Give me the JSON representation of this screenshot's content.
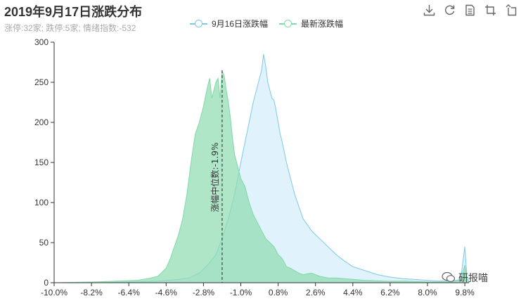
{
  "title": "2019年9月17日涨跌分布",
  "subtitle": "涨停:32家; 跌停:5家; 情绪指数:-532",
  "toolbox": [
    {
      "name": "download-icon"
    },
    {
      "name": "refresh-icon"
    },
    {
      "name": "data-view-icon"
    },
    {
      "name": "zoom-icon"
    },
    {
      "name": "zoom-reset-icon"
    }
  ],
  "watermark": "研报喵",
  "colors": {
    "series_prev_line": "#7ec8ea",
    "series_prev_fill": "#d6edf9",
    "series_latest_line": "#7fd9a8",
    "series_latest_fill": "#8fdcb2"
  },
  "chart_data": {
    "type": "area",
    "title": "2019年9月17日涨跌分布",
    "subtitle": "涨停:32家; 跌停:5家; 情绪指数:-532",
    "xlim": [
      -10,
      10
    ],
    "ylim": [
      0,
      300
    ],
    "xticks": [
      "-10.0%",
      "-8.2%",
      "-6.4%",
      "-4.6%",
      "-2.8%",
      "-1.0%",
      "0.8%",
      "2.6%",
      "4.4%",
      "6.2%",
      "8.0%",
      "9.8%"
    ],
    "yticks": [
      "0",
      "50",
      "100",
      "150",
      "200",
      "250",
      "300"
    ],
    "legend_position": "top-center",
    "grid": false,
    "median_annotation": {
      "x": -1.9,
      "label": "涨幅中位数:-1.9%"
    },
    "series": [
      {
        "name": "9月16日涨跌幅",
        "x": [
          -10.0,
          -8.0,
          -6.0,
          -5.0,
          -4.0,
          -3.5,
          -3.0,
          -2.6,
          -2.2,
          -1.9,
          -1.6,
          -1.3,
          -1.0,
          -0.8,
          -0.6,
          -0.4,
          -0.2,
          0.0,
          0.1,
          0.2,
          0.3,
          0.4,
          0.5,
          0.6,
          0.7,
          0.8,
          0.9,
          1.0,
          1.2,
          1.4,
          1.6,
          1.8,
          2.0,
          2.4,
          2.8,
          3.2,
          3.6,
          4.0,
          4.4,
          5.0,
          5.6,
          6.2,
          6.8,
          7.4,
          8.0,
          8.6,
          9.2,
          9.6,
          9.8,
          9.9,
          10.0
        ],
        "y": [
          0,
          0,
          1,
          2,
          4,
          6,
          12,
          22,
          35,
          55,
          80,
          110,
          150,
          175,
          200,
          225,
          245,
          265,
          285,
          270,
          250,
          240,
          230,
          228,
          215,
          200,
          185,
          175,
          150,
          130,
          110,
          95,
          80,
          65,
          55,
          45,
          35,
          27,
          20,
          15,
          10,
          7,
          5,
          4,
          3,
          2,
          2,
          4,
          45,
          8,
          0
        ]
      },
      {
        "name": "最新涨跌幅",
        "x": [
          -10.0,
          -8.0,
          -7.0,
          -6.0,
          -5.5,
          -5.0,
          -4.6,
          -4.4,
          -4.2,
          -4.0,
          -3.8,
          -3.6,
          -3.4,
          -3.2,
          -3.0,
          -2.8,
          -2.6,
          -2.5,
          -2.4,
          -2.2,
          -2.1,
          -2.0,
          -1.9,
          -1.8,
          -1.7,
          -1.6,
          -1.5,
          -1.4,
          -1.3,
          -1.2,
          -1.0,
          -0.8,
          -0.6,
          -0.4,
          -0.2,
          0.0,
          0.2,
          0.4,
          0.6,
          0.8,
          1.0,
          1.2,
          1.4,
          1.6,
          1.8,
          2.0,
          2.4,
          2.8,
          3.2,
          3.6,
          4.0,
          5.0,
          6.0,
          7.0,
          8.0,
          9.0,
          9.6,
          9.8,
          9.9,
          10.0
        ],
        "y": [
          0,
          1,
          2,
          3,
          5,
          8,
          18,
          30,
          45,
          60,
          80,
          110,
          150,
          185,
          200,
          220,
          245,
          255,
          230,
          250,
          255,
          230,
          264,
          258,
          240,
          225,
          205,
          180,
          160,
          150,
          130,
          120,
          100,
          85,
          75,
          65,
          55,
          50,
          45,
          35,
          30,
          20,
          18,
          15,
          12,
          10,
          12,
          8,
          6,
          6,
          5,
          3,
          2,
          2,
          1,
          1,
          3,
          22,
          6,
          0
        ]
      }
    ]
  }
}
